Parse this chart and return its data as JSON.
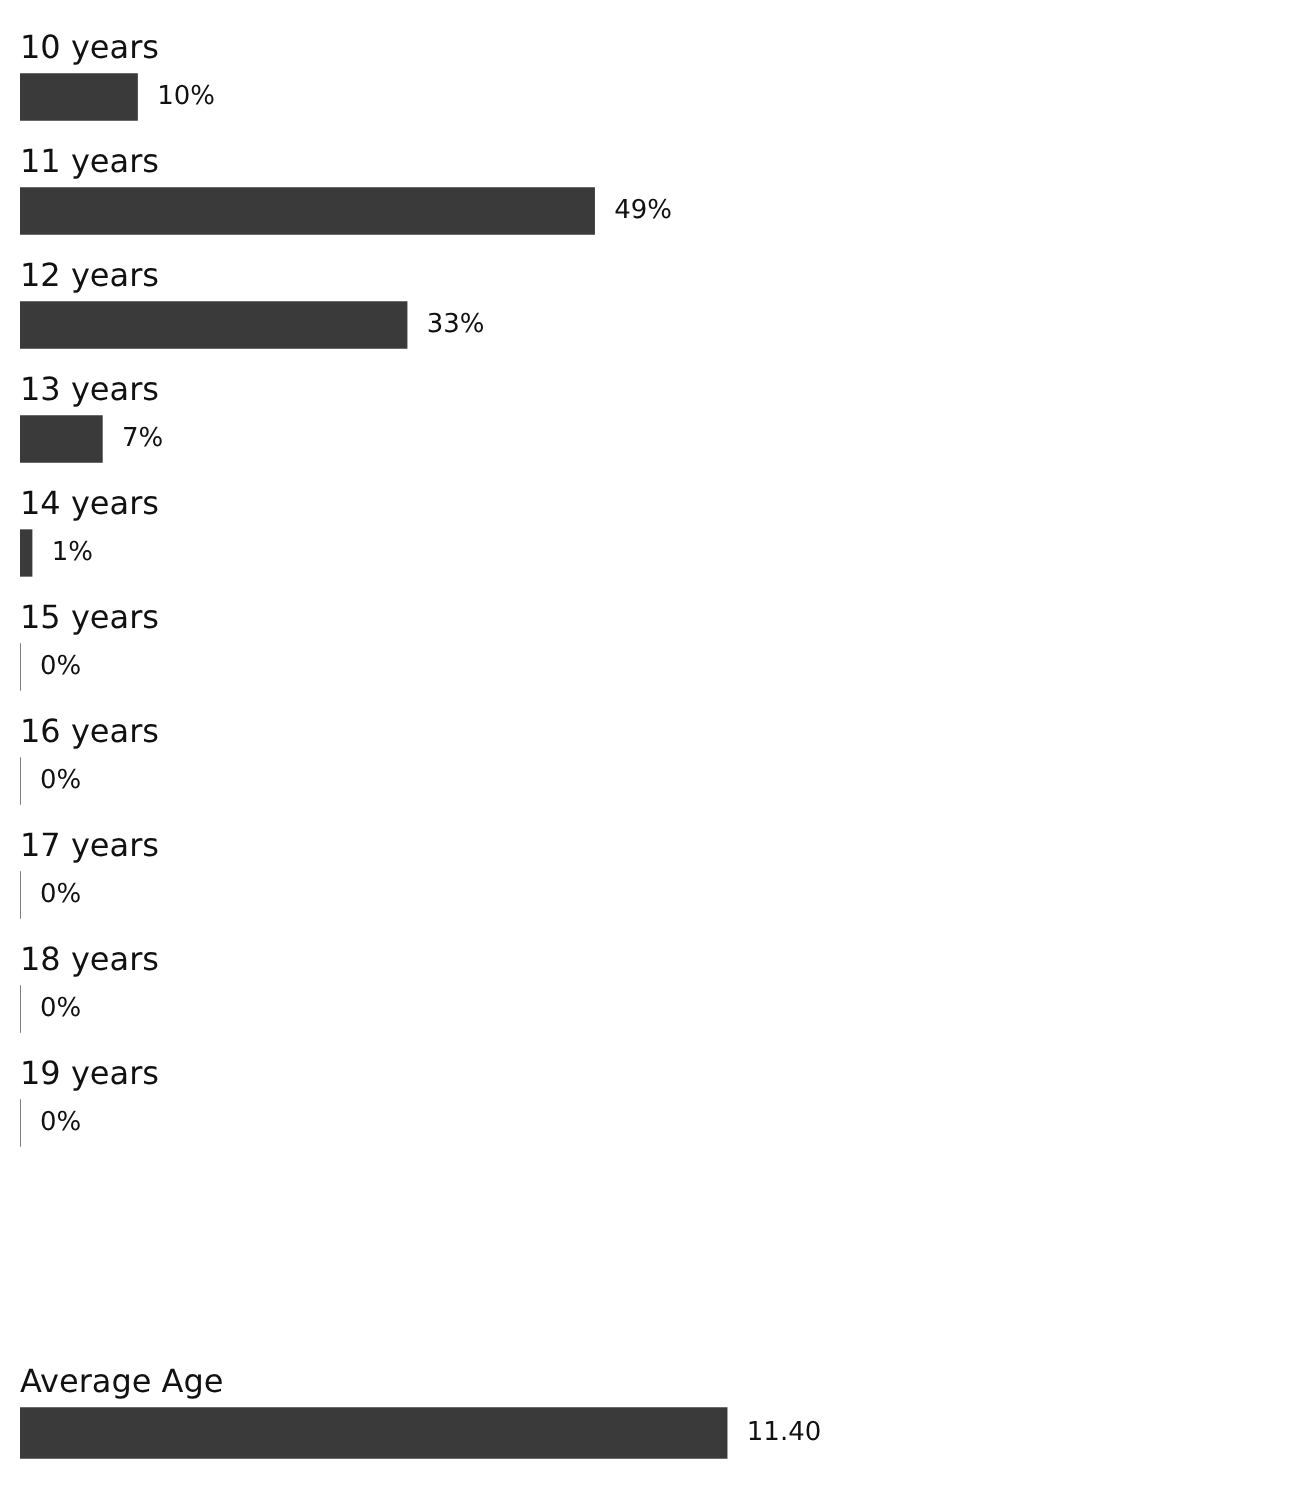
{
  "chart_data": [
    {
      "type": "bar",
      "orientation": "horizontal",
      "categories": [
        "10 years",
        "11 years",
        "12 years",
        "13 years",
        "14 years",
        "15 years",
        "16 years",
        "17 years",
        "18 years",
        "19 years"
      ],
      "values": [
        10,
        49,
        33,
        7,
        1,
        0,
        0,
        0,
        0,
        0
      ],
      "value_labels": [
        "10%",
        "49%",
        "33%",
        "7%",
        "1%",
        "0%",
        "0%",
        "0%",
        "0%",
        "0%"
      ],
      "color": "#3a3a3a",
      "tick_labels": false
    },
    {
      "type": "bar",
      "orientation": "horizontal",
      "categories": [
        "Average Age"
      ],
      "values": [
        11.4
      ],
      "value_labels": [
        "11.40"
      ],
      "color": "#3a3a3a",
      "tick_labels": false
    }
  ]
}
